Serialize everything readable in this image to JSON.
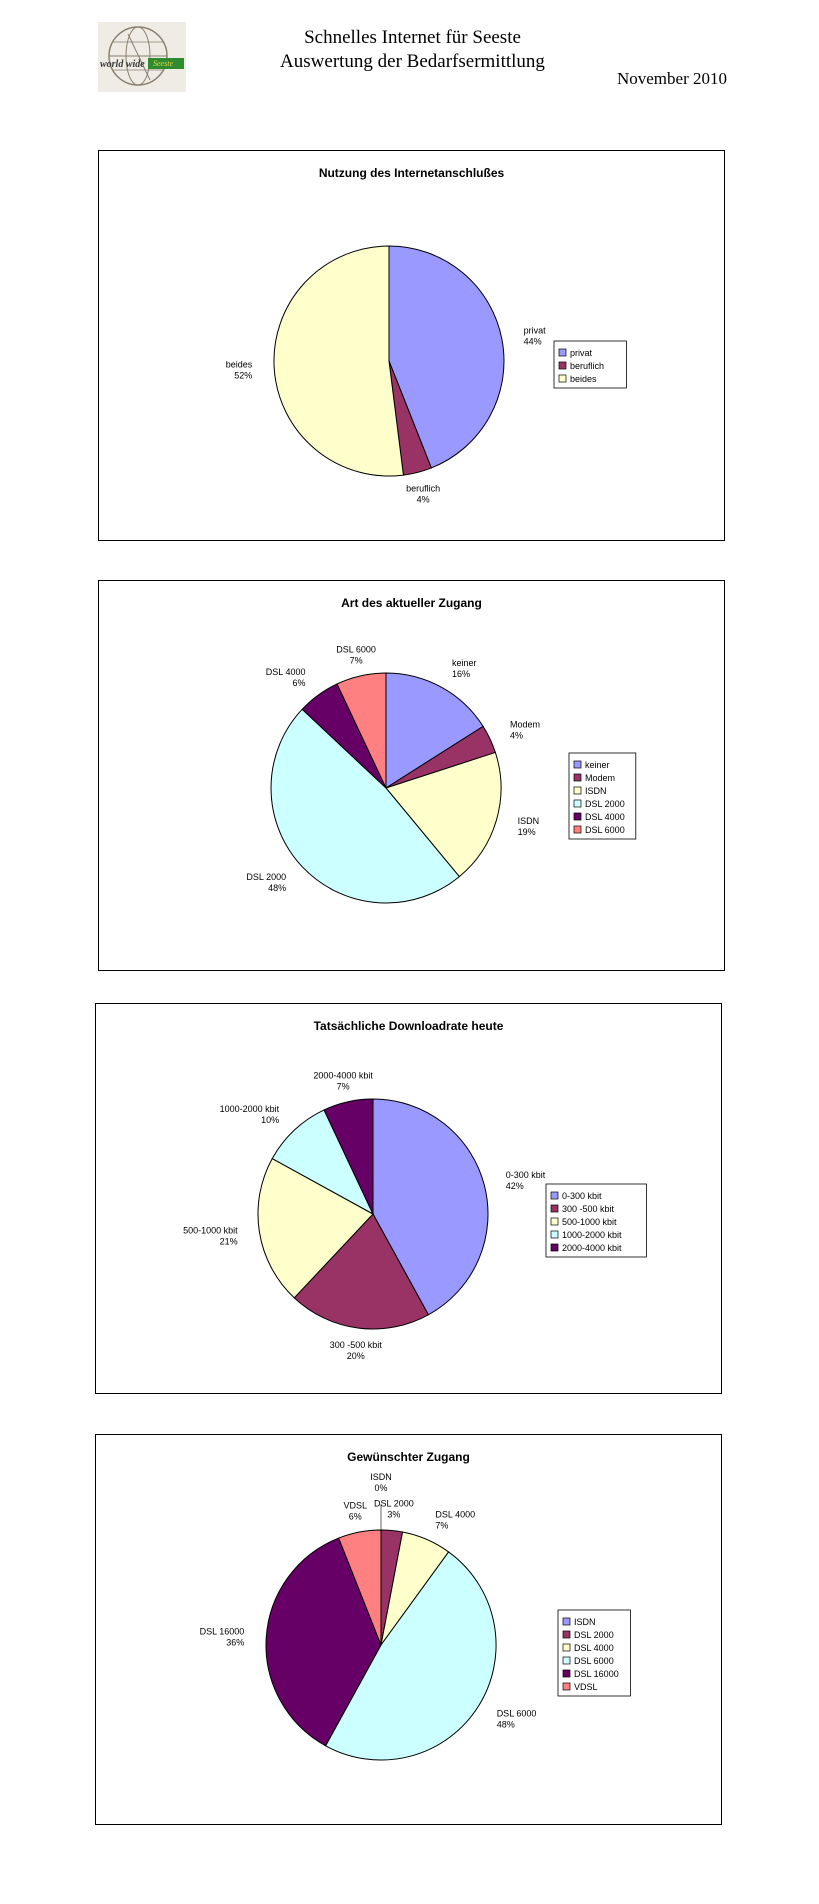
{
  "header": {
    "title_line1": "Schnelles Internet für Seeste",
    "title_line2": "Auswertung der Bedarfsermittlung",
    "date": "November 2010",
    "logo_text_left": "world wide",
    "logo_text_right": "Seeste"
  },
  "chart_data": [
    {
      "type": "pie",
      "title": "Nutzung des Internetanschlußes",
      "categories": [
        "privat",
        "beruflich",
        "beides"
      ],
      "values": [
        44,
        4,
        52
      ],
      "value_labels": [
        "44%",
        "4%",
        "52%"
      ],
      "colors": [
        "#9999ff",
        "#993366",
        "#ffffcc"
      ],
      "legend": "right"
    },
    {
      "type": "pie",
      "title": "Art des aktueller Zugang",
      "categories": [
        "keiner",
        "Modem",
        "ISDN",
        "DSL 2000",
        "DSL 4000",
        "DSL 6000"
      ],
      "values": [
        16,
        4,
        19,
        48,
        6,
        7
      ],
      "value_labels": [
        "16%",
        "4%",
        "19%",
        "48%",
        "6%",
        "7%"
      ],
      "colors": [
        "#9999ff",
        "#993366",
        "#ffffcc",
        "#ccffff",
        "#660066",
        "#ff8080"
      ],
      "legend": "right"
    },
    {
      "type": "pie",
      "title": "Tatsächliche Downloadrate heute",
      "categories": [
        "0-300 kbit",
        "300 -500 kbit",
        "500-1000 kbit",
        "1000-2000 kbit",
        "2000-4000 kbit"
      ],
      "values": [
        42,
        20,
        21,
        10,
        7
      ],
      "value_labels": [
        "42%",
        "20%",
        "21%",
        "10%",
        "7%"
      ],
      "colors": [
        "#9999ff",
        "#993366",
        "#ffffcc",
        "#ccffff",
        "#660066"
      ],
      "legend": "right"
    },
    {
      "type": "pie",
      "title": "Gewünschter Zugang",
      "categories": [
        "ISDN",
        "DSL 2000",
        "DSL 4000",
        "DSL 6000",
        "DSL 16000",
        "VDSL"
      ],
      "values": [
        0,
        3,
        7,
        48,
        36,
        6
      ],
      "value_labels": [
        "0%",
        "3%",
        "7%",
        "48%",
        "36%",
        "6%"
      ],
      "colors": [
        "#9999ff",
        "#993366",
        "#ffffcc",
        "#ccffff",
        "#660066",
        "#ff8080"
      ],
      "legend": "right"
    }
  ]
}
